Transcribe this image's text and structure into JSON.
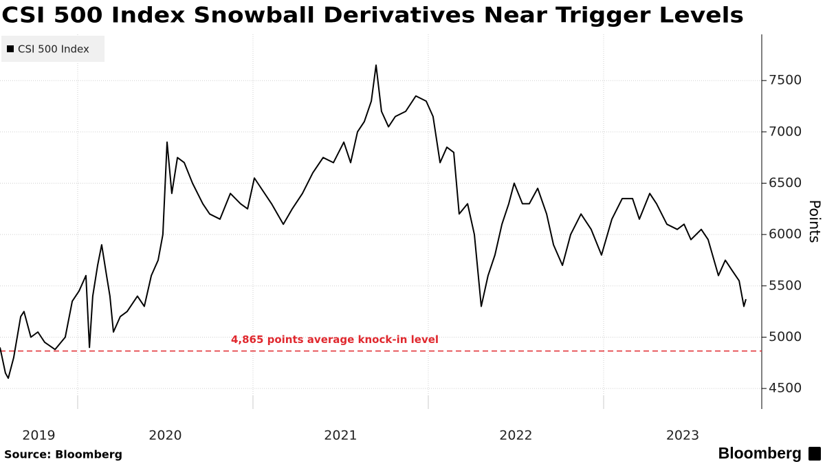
{
  "chart_data": {
    "type": "line",
    "title": "CSI 500 Index Snowball Derivatives Near Trigger Levels",
    "y_label": "Points",
    "source": "Source: Bloomberg",
    "brand": "Bloomberg",
    "legend_position": "top-left",
    "grid": true,
    "xlim": [
      2019.557,
      2023.902
    ],
    "xticks": [
      2019,
      2020,
      2021,
      2022,
      2023
    ],
    "ylim": [
      4300,
      7950
    ],
    "yticks": [
      4500,
      5000,
      5500,
      6000,
      6500,
      7000,
      7500
    ],
    "reference_line": {
      "value": 4865,
      "label": "4,865 points average knock-in level",
      "color": "#e0282e"
    },
    "x": [
      2019.557,
      2019.588,
      2019.604,
      2019.635,
      2019.675,
      2019.694,
      2019.733,
      2019.773,
      2019.812,
      2019.871,
      2019.929,
      2019.969,
      2020.008,
      2020.047,
      2020.067,
      2020.086,
      2020.114,
      2020.137,
      2020.165,
      2020.184,
      2020.204,
      2020.243,
      2020.282,
      2020.341,
      2020.38,
      2020.42,
      2020.459,
      2020.486,
      2020.51,
      2020.537,
      2020.569,
      2020.608,
      2020.655,
      2020.714,
      2020.753,
      2020.812,
      2020.871,
      2020.929,
      2020.969,
      2021.008,
      2021.047,
      2021.106,
      2021.173,
      2021.224,
      2021.282,
      2021.341,
      2021.4,
      2021.459,
      2021.518,
      2021.557,
      2021.596,
      2021.635,
      2021.675,
      2021.702,
      2021.733,
      2021.773,
      2021.812,
      2021.871,
      2021.929,
      2021.988,
      2022.027,
      2022.067,
      2022.106,
      2022.145,
      2022.176,
      2022.224,
      2022.263,
      2022.302,
      2022.341,
      2022.38,
      2022.42,
      2022.459,
      2022.49,
      2022.537,
      2022.576,
      2022.624,
      2022.675,
      2022.714,
      2022.765,
      2022.812,
      2022.871,
      2022.929,
      2022.988,
      2023.047,
      2023.106,
      2023.165,
      2023.204,
      2023.263,
      2023.302,
      2023.361,
      2023.42,
      2023.459,
      2023.498,
      2023.557,
      2023.596,
      2023.655,
      2023.694,
      2023.733,
      2023.773,
      2023.8,
      2023.812
    ],
    "series": [
      {
        "name": "CSI 500 Index",
        "color": "#000000",
        "values": [
          4900,
          4650,
          4600,
          4800,
          5200,
          5250,
          5000,
          5050,
          4950,
          4880,
          5000,
          5350,
          5450,
          5600,
          4900,
          5400,
          5700,
          5900,
          5600,
          5400,
          5050,
          5200,
          5250,
          5400,
          5300,
          5600,
          5750,
          6000,
          6900,
          6400,
          6750,
          6700,
          6500,
          6300,
          6200,
          6150,
          6400,
          6300,
          6250,
          6550,
          6450,
          6300,
          6100,
          6250,
          6400,
          6600,
          6750,
          6700,
          6900,
          6700,
          7000,
          7100,
          7300,
          7650,
          7200,
          7050,
          7150,
          7200,
          7350,
          7300,
          7150,
          6700,
          6850,
          6800,
          6200,
          6300,
          6000,
          5300,
          5600,
          5800,
          6100,
          6300,
          6500,
          6300,
          6300,
          6450,
          6200,
          5900,
          5700,
          6000,
          6200,
          6050,
          5800,
          6150,
          6350,
          6350,
          6150,
          6400,
          6300,
          6100,
          6050,
          6100,
          5950,
          6050,
          5950,
          5600,
          5750,
          5650,
          5550,
          5300,
          5370
        ]
      }
    ]
  }
}
